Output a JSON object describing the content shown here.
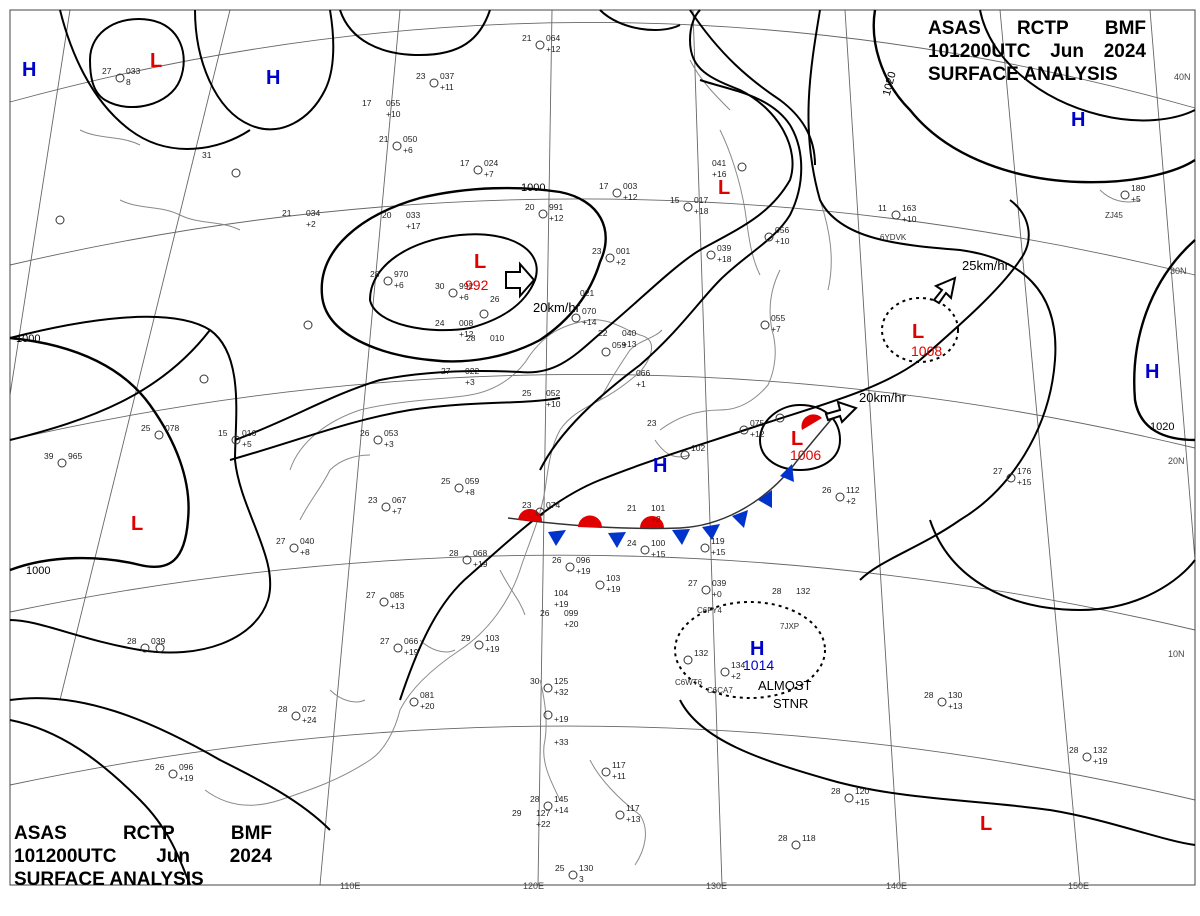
{
  "header": {
    "line1": [
      "ASAS",
      "RCTP",
      "BMF"
    ],
    "line2": [
      "101200UTC",
      "Jun",
      "2024"
    ],
    "line3": "SURFACE ANALYSIS"
  },
  "colors": {
    "high": "#0000cc",
    "low": "#e00000",
    "warm_front": "#e00000",
    "cold_front": "#0033cc",
    "isobar": "#000000",
    "grid": "#555555"
  },
  "pressure_centers": [
    {
      "id": "h1",
      "type": "H",
      "name": "high-center"
    },
    {
      "id": "h2",
      "type": "H",
      "name": "high-center"
    },
    {
      "id": "h3",
      "type": "H",
      "name": "high-center"
    },
    {
      "id": "h4",
      "type": "H",
      "name": "high-center"
    },
    {
      "id": "h5",
      "type": "H",
      "name": "high-center"
    },
    {
      "id": "h6",
      "type": "H",
      "name": "high-center",
      "value": "1014"
    },
    {
      "id": "l1",
      "type": "L",
      "name": "low-center"
    },
    {
      "id": "l2",
      "type": "L",
      "name": "low-center",
      "value": "992"
    },
    {
      "id": "l3",
      "type": "L",
      "name": "low-center"
    },
    {
      "id": "l4",
      "type": "L",
      "name": "low-center",
      "value": "1008"
    },
    {
      "id": "l5",
      "type": "L",
      "name": "low-center",
      "value": "1006"
    },
    {
      "id": "l6",
      "type": "L",
      "name": "low-center"
    },
    {
      "id": "l7",
      "type": "L",
      "name": "low-center"
    }
  ],
  "isobar_labels": [
    "1000",
    "1000",
    "1000",
    "1020",
    "1020"
  ],
  "motion": [
    {
      "id": "m1",
      "text": "20km/hr"
    },
    {
      "id": "m2",
      "text": "25km/hr"
    },
    {
      "id": "m3",
      "text": "20km/hr"
    }
  ],
  "annotation": [
    "ALMOST",
    "STNR"
  ],
  "lat_labels": [
    "40N",
    "30N",
    "20N",
    "10N"
  ],
  "lon_labels": [
    "110E",
    "120E",
    "130E",
    "140E",
    "150E"
  ],
  "stations": [
    {
      "t": "21",
      "p": "064",
      "c": "+12"
    },
    {
      "t": "23",
      "p": "037",
      "c": "+11"
    },
    {
      "t": "27",
      "p": "033",
      "c": "8"
    },
    {
      "t": "17",
      "p": "055",
      "c": "+10"
    },
    {
      "t": "21",
      "p": "050",
      "c": "+6"
    },
    {
      "t": "17",
      "p": "024",
      "c": "+7"
    },
    {
      "t": "31",
      "p": "",
      "c": ""
    },
    {
      "t": "21",
      "p": "034",
      "c": "+2"
    },
    {
      "t": "20",
      "p": "033",
      "c": "+17"
    },
    {
      "t": "17",
      "p": "003",
      "c": "+12"
    },
    {
      "t": "20",
      "p": "991",
      "c": "+12"
    },
    {
      "t": "15",
      "p": "017",
      "c": "+18"
    },
    {
      "t": "",
      "p": "041",
      "c": "+16"
    },
    {
      "t": "",
      "p": "039",
      "c": "+18"
    },
    {
      "t": "",
      "p": "056",
      "c": "+10"
    },
    {
      "t": "11",
      "p": "163",
      "c": "+10"
    },
    {
      "t": "",
      "p": "180",
      "c": "+5"
    },
    {
      "t": "28",
      "p": "970",
      "c": "+6"
    },
    {
      "t": "30",
      "p": "992",
      "c": "+6"
    },
    {
      "t": "",
      "p": "021",
      "c": ""
    },
    {
      "t": "24",
      "p": "008",
      "c": "+12"
    },
    {
      "t": "26",
      "p": "",
      "c": ""
    },
    {
      "t": "23",
      "p": "001",
      "c": "+2"
    },
    {
      "t": "28",
      "p": "010",
      "c": ""
    },
    {
      "t": "",
      "p": "070",
      "c": "+14"
    },
    {
      "t": "22",
      "p": "040",
      "c": "+13"
    },
    {
      "t": "",
      "p": "059",
      "c": ""
    },
    {
      "t": "",
      "p": "066",
      "c": "+1"
    },
    {
      "t": "27",
      "p": "022",
      "c": "+3"
    },
    {
      "t": "25",
      "p": "052",
      "c": "+10"
    },
    {
      "t": "",
      "p": "055",
      "c": "+7"
    },
    {
      "t": "25",
      "p": "078",
      "c": ""
    },
    {
      "t": "15",
      "p": "016",
      "c": "+5"
    },
    {
      "t": "26",
      "p": "053",
      "c": "+3"
    },
    {
      "t": "39",
      "p": "965",
      "c": ""
    },
    {
      "t": "23",
      "p": "",
      "c": ""
    },
    {
      "t": "",
      "p": "102",
      "c": ""
    },
    {
      "t": "",
      "p": "075",
      "c": "+12"
    },
    {
      "t": "25",
      "p": "059",
      "c": "+8"
    },
    {
      "t": "23",
      "p": "067",
      "c": "+7"
    },
    {
      "t": "23",
      "p": "074",
      "c": ""
    },
    {
      "t": "21",
      "p": "101",
      "c": "+2"
    },
    {
      "t": "26",
      "p": "112",
      "c": "+2"
    },
    {
      "t": "27",
      "p": "176",
      "c": "+15"
    },
    {
      "t": "27",
      "p": "040",
      "c": "+8"
    },
    {
      "t": "28",
      "p": "068",
      "c": "+19"
    },
    {
      "t": "26",
      "p": "096",
      "c": "+19"
    },
    {
      "t": "24",
      "p": "100",
      "c": "+15"
    },
    {
      "t": "",
      "p": "119",
      "c": "+15"
    },
    {
      "t": "",
      "p": "103",
      "c": "+19"
    },
    {
      "t": "27",
      "p": "039",
      "c": "+0"
    },
    {
      "t": "27",
      "p": "085",
      "c": "+13"
    },
    {
      "t": "",
      "p": "104",
      "c": "+19"
    },
    {
      "t": "26",
      "p": "099",
      "c": "+20"
    },
    {
      "t": "28",
      "p": "132",
      "c": ""
    },
    {
      "t": "28",
      "p": "039",
      "c": ""
    },
    {
      "t": "27",
      "p": "066",
      "c": "+19"
    },
    {
      "t": "29",
      "p": "103",
      "c": "+19"
    },
    {
      "t": "",
      "p": "132",
      "c": ""
    },
    {
      "t": "",
      "p": "134",
      "c": "+2"
    },
    {
      "t": "",
      "p": "081",
      "c": "+20"
    },
    {
      "t": "30",
      "p": "125",
      "c": "+32"
    },
    {
      "t": "28",
      "p": "072",
      "c": "+24"
    },
    {
      "t": "",
      "p": "",
      "c": "+19"
    },
    {
      "t": "28",
      "p": "130",
      "c": "+13"
    },
    {
      "t": "",
      "p": "",
      "c": "+33"
    },
    {
      "t": "26",
      "p": "096",
      "c": "+19"
    },
    {
      "t": "",
      "p": "117",
      "c": "+11"
    },
    {
      "t": "28",
      "p": "132",
      "c": "+19"
    },
    {
      "t": "28",
      "p": "120",
      "c": "+15"
    },
    {
      "t": "28",
      "p": "145",
      "c": "+14"
    },
    {
      "t": "29",
      "p": "127",
      "c": "+22"
    },
    {
      "t": "",
      "p": "117",
      "c": "+13"
    },
    {
      "t": "28",
      "p": "118",
      "c": ""
    },
    {
      "t": "25",
      "p": "130",
      "c": "3"
    }
  ],
  "ship_ids": [
    "6YDVK",
    "ZJ45",
    "7JXP",
    "C6FY4",
    "C6WT6",
    "C6CA7"
  ]
}
